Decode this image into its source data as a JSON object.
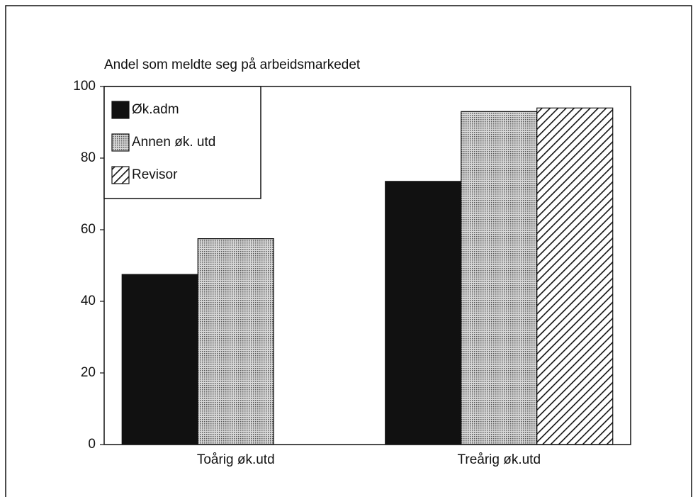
{
  "chart_data": {
    "type": "bar",
    "title": "Andel som meldte seg på arbeidsmarkedet",
    "categories": [
      "Toårig øk.utd",
      "Treårig øk.utd"
    ],
    "series": [
      {
        "name": "Øk.adm",
        "color": "#111111",
        "pattern": "solid",
        "values": [
          47.5,
          73.5
        ]
      },
      {
        "name": "Annen øk. utd",
        "color": "#9a9a9a",
        "pattern": "dots",
        "values": [
          57.5,
          93
        ]
      },
      {
        "name": "Revisor",
        "color": "#111111",
        "pattern": "hatch",
        "values": [
          null,
          94
        ]
      }
    ],
    "ylim": [
      0,
      100
    ],
    "yticks": [
      0,
      20,
      40,
      60,
      80,
      100
    ],
    "grid": false,
    "legend": "top-left"
  }
}
